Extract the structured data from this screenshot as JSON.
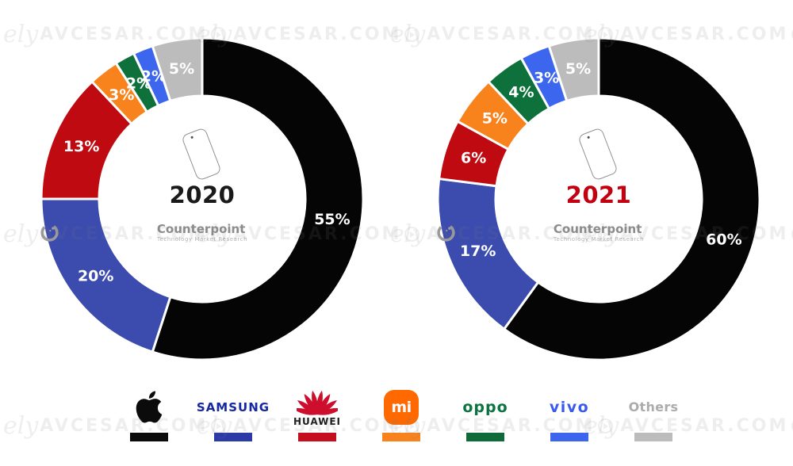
{
  "canvas": {
    "background": "#FFFFFF"
  },
  "watermark": {
    "prefix": "ely",
    "text": "AVCESAR.COM"
  },
  "center": {
    "logo_name": "Counterpoint",
    "logo_subtitle": "Technology Market Research"
  },
  "charts_meta": {
    "year_colors": [
      "#1A1A1A",
      "#C3000F"
    ],
    "separator_color": "#FFFFFF"
  },
  "chart_data": {
    "type": "pie",
    "variant": "donut",
    "unit": "%",
    "title": "",
    "categories": [
      "Apple",
      "Samsung",
      "Huawei",
      "Xiaomi",
      "Oppo",
      "Vivo",
      "Others"
    ],
    "colors": [
      "#050505",
      "#3B4BAE",
      "#C00A12",
      "#F8821B",
      "#0E713C",
      "#3D66EE",
      "#BCBCBC"
    ],
    "series": [
      {
        "name": "2020",
        "values": [
          55,
          20,
          13,
          3,
          2,
          2,
          5
        ]
      },
      {
        "name": "2021",
        "values": [
          60,
          17,
          6,
          5,
          4,
          3,
          5
        ]
      }
    ],
    "data_labels": {
      "2020": [
        "55%",
        "20%",
        "13%",
        "3%",
        "2%",
        "2%",
        "5%"
      ],
      "2021": [
        "60%",
        "17%",
        "6%",
        "5%",
        "4%",
        "3%",
        "5%"
      ]
    },
    "legend_position": "bottom"
  },
  "legend": [
    {
      "id": "apple",
      "label": "",
      "icon_color": "#0B0B0B",
      "bar_color": "#0B0B0B"
    },
    {
      "id": "samsung",
      "label": "SAMSUNG",
      "text_color": "#1428A0",
      "bar_color": "#2B3AA6"
    },
    {
      "id": "huawei",
      "label": "HUAWEI",
      "text_color": "#1A1A1A",
      "icon_color": "#CE0E2D",
      "bar_color": "#C50F1E"
    },
    {
      "id": "mi",
      "label": "mi",
      "text_color": "#FFFFFF",
      "icon_color": "#FF6900",
      "bar_color": "#F8821B"
    },
    {
      "id": "oppo",
      "label": "oppo",
      "text_color": "#0C7440",
      "bar_color": "#0E6B37"
    },
    {
      "id": "vivo",
      "label": "vivo",
      "text_color": "#3B5BEE",
      "bar_color": "#3D66EE"
    },
    {
      "id": "others",
      "label": "Others",
      "text_color": "#ABABAB",
      "bar_color": "#BCBCBC"
    }
  ]
}
